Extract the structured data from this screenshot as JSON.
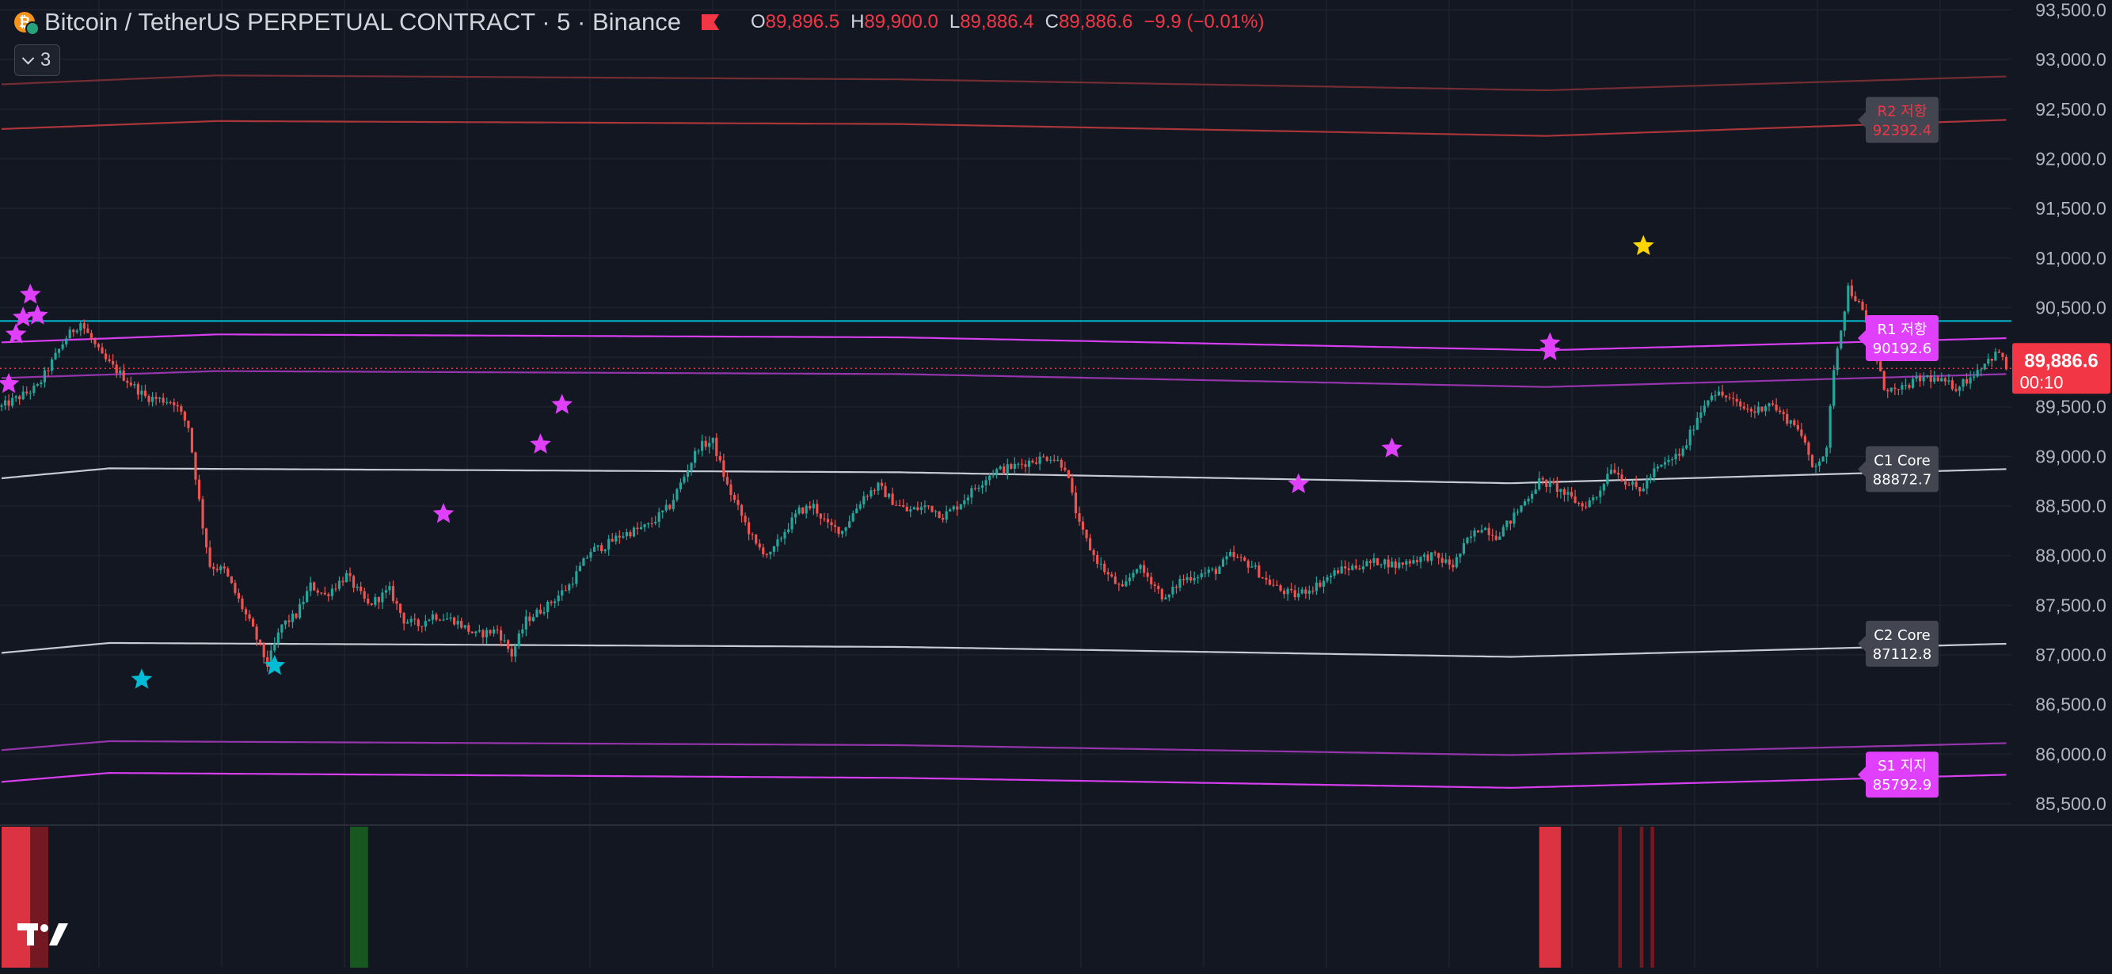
{
  "header": {
    "symbol": "Bitcoin / TetherUS PERPETUAL CONTRACT · 5 · Binance",
    "ohlc": {
      "o_label": "O",
      "o": "89,896.5",
      "h_label": "H",
      "h": "89,900.0",
      "l_label": "L",
      "l": "89,886.4",
      "c_label": "C",
      "c": "89,886.6",
      "change": "−9.9 (−0.01%)"
    },
    "indicator_count": "3"
  },
  "colors": {
    "background": "#131722",
    "grid": "#1e222d",
    "up": "#26a69a",
    "down": "#ef5350",
    "magenta": "#e040fb",
    "cyan": "#00bcd4",
    "white": "#d1d4dc",
    "red_line": "#b2383c",
    "gold": "#ffd600",
    "price_tag": "#f23645",
    "label_dark": "#434651"
  },
  "icons": {
    "symbol_icon": "bitcoin-coin-icon",
    "flag": "flag-icon",
    "toggle": "chevron-down-icon",
    "logo": "tradingview-logo"
  },
  "chart_data": {
    "type": "candlestick",
    "y_range": [
      85300,
      93600
    ],
    "y_ticks": [
      "93,500.0",
      "93,000.0",
      "92,500.0",
      "92,000.0",
      "91,500.0",
      "91,000.0",
      "90,500.0",
      "90,000.0",
      "89,500.0",
      "89,000.0",
      "88,500.0",
      "88,000.0",
      "87,500.0",
      "87,000.0",
      "86,500.0",
      "86,000.0",
      "85,500.0"
    ],
    "y_tick_values": [
      93500,
      93000,
      92500,
      92000,
      91500,
      91000,
      90500,
      90000,
      89500,
      89000,
      88500,
      88000,
      87500,
      87000,
      86500,
      86000,
      85500
    ],
    "close_path": [
      [
        0,
        89500
      ],
      [
        10,
        89700
      ],
      [
        18,
        90200
      ],
      [
        22,
        90350
      ],
      [
        28,
        90000
      ],
      [
        34,
        89800
      ],
      [
        40,
        89600
      ],
      [
        48,
        89550
      ],
      [
        52,
        89300
      ],
      [
        56,
        88300
      ],
      [
        58,
        87900
      ],
      [
        62,
        87850
      ],
      [
        66,
        87550
      ],
      [
        70,
        87250
      ],
      [
        74,
        86900
      ],
      [
        78,
        87300
      ],
      [
        82,
        87400
      ],
      [
        86,
        87700
      ],
      [
        90,
        87600
      ],
      [
        96,
        87800
      ],
      [
        102,
        87500
      ],
      [
        108,
        87650
      ],
      [
        112,
        87350
      ],
      [
        116,
        87300
      ],
      [
        120,
        87400
      ],
      [
        126,
        87350
      ],
      [
        132,
        87200
      ],
      [
        138,
        87250
      ],
      [
        142,
        87000
      ],
      [
        146,
        87350
      ],
      [
        152,
        87500
      ],
      [
        158,
        87700
      ],
      [
        164,
        88050
      ],
      [
        168,
        88100
      ],
      [
        172,
        88200
      ],
      [
        176,
        88250
      ],
      [
        180,
        88300
      ],
      [
        186,
        88500
      ],
      [
        190,
        88800
      ],
      [
        194,
        89100
      ],
      [
        198,
        89150
      ],
      [
        202,
        88700
      ],
      [
        206,
        88400
      ],
      [
        210,
        88100
      ],
      [
        214,
        88000
      ],
      [
        218,
        88250
      ],
      [
        222,
        88450
      ],
      [
        226,
        88500
      ],
      [
        230,
        88300
      ],
      [
        234,
        88250
      ],
      [
        240,
        88600
      ],
      [
        244,
        88700
      ],
      [
        248,
        88550
      ],
      [
        252,
        88450
      ],
      [
        258,
        88500
      ],
      [
        262,
        88400
      ],
      [
        266,
        88500
      ],
      [
        270,
        88650
      ],
      [
        276,
        88850
      ],
      [
        282,
        88900
      ],
      [
        286,
        88950
      ],
      [
        292,
        89000
      ],
      [
        296,
        88900
      ],
      [
        300,
        88300
      ],
      [
        304,
        88000
      ],
      [
        308,
        87800
      ],
      [
        312,
        87650
      ],
      [
        316,
        87900
      ],
      [
        320,
        87750
      ],
      [
        324,
        87550
      ],
      [
        328,
        87750
      ],
      [
        332,
        87800
      ],
      [
        338,
        87850
      ],
      [
        342,
        88000
      ],
      [
        348,
        87900
      ],
      [
        352,
        87750
      ],
      [
        356,
        87650
      ],
      [
        360,
        87600
      ],
      [
        366,
        87700
      ],
      [
        372,
        87850
      ],
      [
        378,
        87900
      ],
      [
        384,
        87950
      ],
      [
        388,
        87900
      ],
      [
        392,
        87950
      ],
      [
        398,
        88000
      ],
      [
        404,
        87900
      ],
      [
        408,
        88150
      ],
      [
        412,
        88300
      ],
      [
        416,
        88200
      ],
      [
        420,
        88350
      ],
      [
        424,
        88550
      ],
      [
        428,
        88750
      ],
      [
        432,
        88700
      ],
      [
        436,
        88600
      ],
      [
        440,
        88500
      ],
      [
        444,
        88600
      ],
      [
        448,
        88900
      ],
      [
        452,
        88750
      ],
      [
        456,
        88650
      ],
      [
        460,
        88850
      ],
      [
        464,
        88950
      ],
      [
        468,
        89050
      ],
      [
        472,
        89400
      ],
      [
        476,
        89650
      ],
      [
        480,
        89600
      ],
      [
        484,
        89500
      ],
      [
        488,
        89450
      ],
      [
        492,
        89550
      ],
      [
        496,
        89400
      ],
      [
        500,
        89300
      ],
      [
        504,
        88900
      ],
      [
        508,
        89050
      ],
      [
        510,
        89900
      ],
      [
        512,
        90300
      ],
      [
        514,
        90700
      ],
      [
        516,
        90600
      ],
      [
        518,
        90450
      ],
      [
        520,
        90200
      ],
      [
        524,
        89700
      ],
      [
        528,
        89650
      ],
      [
        532,
        89750
      ],
      [
        536,
        89800
      ],
      [
        540,
        89750
      ],
      [
        544,
        89700
      ],
      [
        548,
        89800
      ],
      [
        552,
        89950
      ],
      [
        556,
        90050
      ],
      [
        558,
        89887
      ]
    ],
    "bar_count": 560,
    "levels": [
      {
        "label": "R2 저항",
        "value": "92392.4",
        "end": 92392.4,
        "path": [
          [
            0,
            92300
          ],
          [
            60,
            92380
          ],
          [
            250,
            92350
          ],
          [
            430,
            92230
          ],
          [
            558,
            92392
          ]
        ],
        "color": "#b2383c",
        "tag": "dark"
      },
      {
        "label": "",
        "value": "",
        "end": 92830,
        "path": [
          [
            0,
            92750
          ],
          [
            60,
            92840
          ],
          [
            250,
            92800
          ],
          [
            430,
            92690
          ],
          [
            558,
            92830
          ]
        ],
        "color": "#7a2e36",
        "tag": "none"
      },
      {
        "label": "R1 저항",
        "value": "90192.6",
        "end": 90192.6,
        "path": [
          [
            0,
            90150
          ],
          [
            60,
            90230
          ],
          [
            250,
            90200
          ],
          [
            430,
            90070
          ],
          [
            558,
            90192
          ]
        ],
        "color": "#e040fb",
        "tag": "magenta"
      },
      {
        "label": "",
        "value": "",
        "end": 89830,
        "path": [
          [
            0,
            89790
          ],
          [
            60,
            89860
          ],
          [
            250,
            89830
          ],
          [
            430,
            89700
          ],
          [
            558,
            89830
          ]
        ],
        "color": "#9c37b3",
        "tag": "none"
      },
      {
        "label": "C1 Core",
        "value": "88872.7",
        "end": 88872.7,
        "path": [
          [
            0,
            88780
          ],
          [
            30,
            88880
          ],
          [
            250,
            88840
          ],
          [
            420,
            88730
          ],
          [
            558,
            88872
          ]
        ],
        "color": "#d1d4dc",
        "tag": "dark"
      },
      {
        "label": "C2 Core",
        "value": "87112.8",
        "end": 87112.8,
        "path": [
          [
            0,
            87020
          ],
          [
            30,
            87120
          ],
          [
            250,
            87080
          ],
          [
            420,
            86980
          ],
          [
            558,
            87112
          ]
        ],
        "color": "#d1d4dc",
        "tag": "dark"
      },
      {
        "label": "",
        "value": "",
        "end": 86110,
        "path": [
          [
            0,
            86040
          ],
          [
            30,
            86130
          ],
          [
            250,
            86090
          ],
          [
            420,
            85990
          ],
          [
            558,
            86110
          ]
        ],
        "color": "#9c37b3",
        "tag": "none"
      },
      {
        "label": "S1 지지",
        "value": "85792.9",
        "end": 85792.9,
        "path": [
          [
            0,
            85720
          ],
          [
            30,
            85810
          ],
          [
            250,
            85760
          ],
          [
            420,
            85660
          ],
          [
            558,
            85792
          ]
        ],
        "color": "#e040fb",
        "tag": "magenta"
      }
    ],
    "cyan_line": 90365,
    "last_price": "89,886.6",
    "countdown": "00:10",
    "last_price_value": 89886.6,
    "stars": [
      {
        "x": 2,
        "y": 89730,
        "color": "#e040fb"
      },
      {
        "x": 4,
        "y": 90230,
        "color": "#e040fb"
      },
      {
        "x": 6,
        "y": 90400,
        "color": "#e040fb"
      },
      {
        "x": 8,
        "y": 90630,
        "color": "#e040fb"
      },
      {
        "x": 10,
        "y": 90420,
        "color": "#e040fb"
      },
      {
        "x": 39,
        "y": 86750,
        "color": "#00bcd4"
      },
      {
        "x": 76,
        "y": 86890,
        "color": "#00bcd4"
      },
      {
        "x": 123,
        "y": 88420,
        "color": "#e040fb"
      },
      {
        "x": 150,
        "y": 89120,
        "color": "#e040fb"
      },
      {
        "x": 156,
        "y": 89520,
        "color": "#e040fb"
      },
      {
        "x": 361,
        "y": 88720,
        "color": "#e040fb"
      },
      {
        "x": 387,
        "y": 89080,
        "color": "#e040fb"
      },
      {
        "x": 431,
        "y": 90060,
        "color": "#e040fb"
      },
      {
        "x": 431,
        "y": 90140,
        "color": "#e040fb"
      },
      {
        "x": 457,
        "y": 91120,
        "color": "#ffd600"
      }
    ],
    "sub_panel_bars": [
      {
        "x0": 0,
        "x1": 8,
        "color": "#f23645"
      },
      {
        "x0": 8,
        "x1": 13,
        "color": "#801922"
      },
      {
        "x0": 97,
        "x1": 102,
        "color": "#1b5e20"
      },
      {
        "x0": 428,
        "x1": 434,
        "color": "#f23645"
      },
      {
        "x0": 450,
        "x1": 451,
        "color": "#801922"
      },
      {
        "x0": 456,
        "x1": 457,
        "color": "#801922"
      },
      {
        "x0": 459,
        "x1": 460,
        "color": "#801922"
      }
    ]
  }
}
